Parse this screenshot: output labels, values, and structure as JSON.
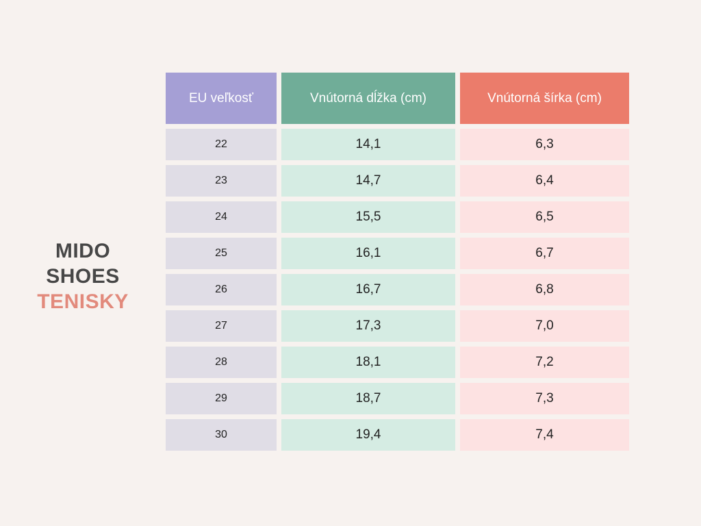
{
  "brand": {
    "line1": "MIDO",
    "line2": "SHOES",
    "line3": "TENISKY"
  },
  "table": {
    "headers": [
      "EU veľkosť",
      "Vnútorná dĺžka (cm)",
      "Vnútorná šírka (cm)"
    ],
    "rows": [
      [
        "22",
        "14,1",
        "6,3"
      ],
      [
        "23",
        "14,7",
        "6,4"
      ],
      [
        "24",
        "15,5",
        "6,5"
      ],
      [
        "25",
        "16,1",
        "6,7"
      ],
      [
        "26",
        "16,7",
        "6,8"
      ],
      [
        "27",
        "17,3",
        "7,0"
      ],
      [
        "28",
        "18,1",
        "7,2"
      ],
      [
        "29",
        "18,7",
        "7,3"
      ],
      [
        "30",
        "19,4",
        "7,4"
      ]
    ]
  },
  "colors": {
    "background": "#f7f2ef",
    "header_size": "#a59fd5",
    "header_length": "#70ad98",
    "header_width": "#eb7c6b",
    "brand_accent": "#e28a7c"
  }
}
